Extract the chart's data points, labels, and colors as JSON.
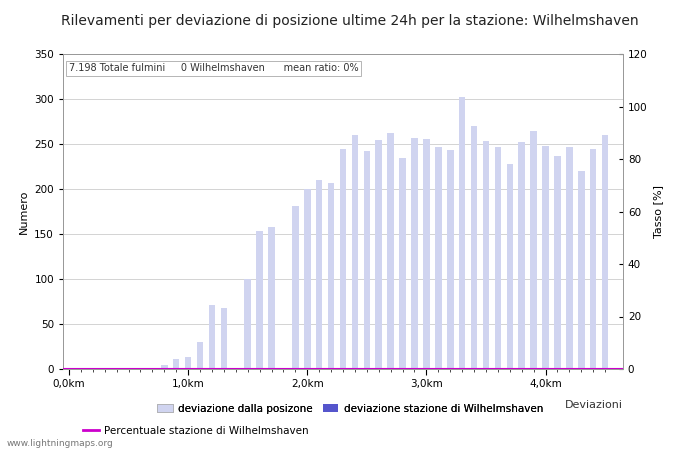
{
  "title": "Rilevamenti per deviazione di posizione ultime 24h per la stazione: Wilhelmshaven",
  "subtitle": "7.198 Totale fulmini     0 Wilhelmshaven      mean ratio: 0%",
  "ylabel_left": "Numero",
  "ylabel_right": "Tasso [%]",
  "xlabel": "Deviazioni",
  "ylim_left": [
    0,
    350
  ],
  "ylim_right": [
    0,
    120
  ],
  "yticks_left": [
    0,
    50,
    100,
    150,
    200,
    250,
    300,
    350
  ],
  "yticks_right": [
    0,
    20,
    40,
    60,
    80,
    100,
    120
  ],
  "bar_positions": [
    0.1,
    0.2,
    0.3,
    0.4,
    0.5,
    0.6,
    0.7,
    0.8,
    0.9,
    1.0,
    1.1,
    1.2,
    1.3,
    1.4,
    1.5,
    1.6,
    1.7,
    1.8,
    1.9,
    2.0,
    2.1,
    2.2,
    2.3,
    2.4,
    2.5,
    2.6,
    2.7,
    2.8,
    2.9,
    3.0,
    3.1,
    3.2,
    3.3,
    3.4,
    3.5,
    3.6,
    3.7,
    3.8,
    3.9,
    4.0,
    4.1,
    4.2,
    4.3,
    4.4,
    4.5
  ],
  "bar_values_total": [
    0,
    0,
    0,
    0,
    0,
    0,
    0,
    5,
    11,
    13,
    30,
    71,
    68,
    0,
    100,
    153,
    158,
    0,
    181,
    200,
    210,
    207,
    245,
    260,
    242,
    255,
    262,
    235,
    257,
    256,
    247,
    243,
    302,
    270,
    253,
    247,
    228,
    252,
    265,
    248,
    237,
    247,
    220,
    244,
    260
  ],
  "bar_values_station": [
    0,
    0,
    0,
    0,
    0,
    0,
    0,
    0,
    0,
    0,
    0,
    0,
    0,
    0,
    0,
    0,
    0,
    0,
    0,
    0,
    0,
    0,
    0,
    0,
    0,
    0,
    0,
    0,
    0,
    0,
    0,
    0,
    0,
    0,
    0,
    0,
    0,
    0,
    0,
    0,
    0,
    0,
    0,
    0,
    0
  ],
  "color_total": "#d0d4f0",
  "color_station": "#5555cc",
  "color_line": "#cc00cc",
  "xlim": [
    -0.05,
    4.65
  ],
  "xtick_positions": [
    0.0,
    1.0,
    2.0,
    3.0,
    4.0
  ],
  "xtick_labels": [
    "0,0km",
    "1,0km",
    "2,0km",
    "3,0km",
    "4,0km"
  ],
  "legend_label_total": "deviazione dalla posizone",
  "legend_label_station": "deviazione stazione di Wilhelmshaven",
  "legend_label_line": "Percentuale stazione di Wilhelmshaven",
  "bg_color": "#ffffff",
  "grid_color": "#cccccc",
  "title_fontsize": 10,
  "axis_fontsize": 8,
  "tick_fontsize": 7.5,
  "watermark": "www.lightningmaps.org"
}
